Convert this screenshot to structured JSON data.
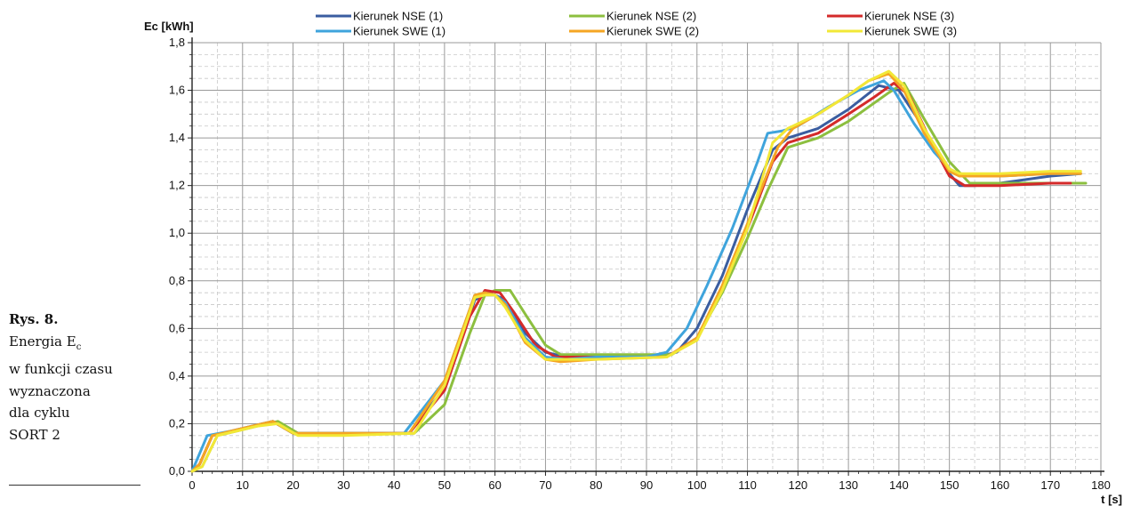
{
  "caption": {
    "figure": "Rys. 8.",
    "line1_prefix": "Energia E",
    "line1_sub": "c",
    "line2": "w funkcji czasu",
    "line3": "wyznaczona",
    "line4": "dla cyklu",
    "line5": "SORT 2"
  },
  "chart_data": {
    "type": "line",
    "xlabel": "t [s]",
    "ylabel": "Ec [kWh]",
    "xlim": [
      0,
      180
    ],
    "ylim": [
      0,
      1.8
    ],
    "xticks": [
      0,
      10,
      20,
      30,
      40,
      50,
      60,
      70,
      80,
      90,
      100,
      110,
      120,
      130,
      140,
      150,
      160,
      170,
      180
    ],
    "yticks": [
      "0,0",
      "0,2",
      "0,4",
      "0,6",
      "0,8",
      "1,0",
      "1,2",
      "1,4",
      "1,6",
      "1,8"
    ],
    "grid": "major solid, minor dashed",
    "legend_position": "top",
    "series": [
      {
        "name": "Kierunek NSE (1)",
        "color": "#3a5da0",
        "x": [
          0,
          1.5,
          4,
          8,
          12,
          16,
          20,
          30,
          43,
          50,
          56,
          58,
          60,
          62,
          66,
          70,
          74,
          80,
          92,
          96,
          100,
          105,
          110,
          115,
          118,
          124,
          130,
          136,
          140,
          145,
          150,
          152,
          155,
          160,
          170,
          176
        ],
        "y": [
          0,
          0.03,
          0.15,
          0.17,
          0.19,
          0.21,
          0.16,
          0.16,
          0.16,
          0.35,
          0.72,
          0.74,
          0.74,
          0.72,
          0.58,
          0.5,
          0.48,
          0.48,
          0.48,
          0.5,
          0.6,
          0.82,
          1.1,
          1.35,
          1.4,
          1.44,
          1.52,
          1.62,
          1.6,
          1.44,
          1.25,
          1.2,
          1.2,
          1.21,
          1.24,
          1.25
        ]
      },
      {
        "name": "Kierunek NSE (2)",
        "color": "#8cbf3f",
        "x": [
          0,
          2,
          5,
          9,
          13,
          17,
          21,
          30,
          44,
          50,
          55,
          58,
          60,
          63,
          66,
          70,
          73,
          80,
          95,
          100,
          105,
          110,
          114,
          118,
          124,
          130,
          138,
          141,
          145,
          150,
          154,
          160,
          170,
          177
        ],
        "y": [
          0,
          0.02,
          0.15,
          0.17,
          0.19,
          0.21,
          0.16,
          0.16,
          0.16,
          0.28,
          0.58,
          0.74,
          0.76,
          0.76,
          0.66,
          0.53,
          0.49,
          0.49,
          0.49,
          0.56,
          0.75,
          0.98,
          1.18,
          1.36,
          1.4,
          1.47,
          1.59,
          1.63,
          1.48,
          1.3,
          1.21,
          1.21,
          1.21,
          1.21
        ]
      },
      {
        "name": "Kierunek NSE (3)",
        "color": "#d42a2a",
        "x": [
          0,
          1.5,
          4,
          8,
          12,
          16,
          20,
          30,
          43,
          50,
          55,
          58,
          61,
          64,
          68,
          72,
          80,
          94,
          100,
          105,
          110,
          115,
          118,
          124,
          130,
          135,
          139,
          142,
          146,
          150,
          153,
          160,
          170,
          174
        ],
        "y": [
          0,
          0.03,
          0.15,
          0.17,
          0.19,
          0.21,
          0.16,
          0.16,
          0.16,
          0.34,
          0.65,
          0.76,
          0.75,
          0.66,
          0.53,
          0.48,
          0.48,
          0.48,
          0.56,
          0.77,
          1.02,
          1.3,
          1.38,
          1.42,
          1.5,
          1.57,
          1.63,
          1.58,
          1.4,
          1.24,
          1.2,
          1.2,
          1.21,
          1.21
        ]
      },
      {
        "name": "Kierunek SWE (1)",
        "color": "#3fa4dc",
        "x": [
          0,
          1,
          3,
          8,
          12,
          16,
          20,
          30,
          42,
          50,
          56,
          58,
          60,
          62,
          66,
          70,
          74,
          80,
          90,
          94,
          98,
          102,
          107,
          112,
          114,
          117,
          120,
          126,
          132,
          137,
          139,
          143,
          147,
          151,
          155,
          160,
          170,
          175
        ],
        "y": [
          0,
          0.05,
          0.15,
          0.17,
          0.19,
          0.21,
          0.16,
          0.16,
          0.16,
          0.38,
          0.74,
          0.75,
          0.74,
          0.71,
          0.56,
          0.48,
          0.47,
          0.48,
          0.48,
          0.5,
          0.6,
          0.78,
          1.02,
          1.3,
          1.42,
          1.43,
          1.45,
          1.53,
          1.6,
          1.64,
          1.6,
          1.46,
          1.34,
          1.25,
          1.24,
          1.24,
          1.25,
          1.25
        ]
      },
      {
        "name": "Kierunek SWE (2)",
        "color": "#f5a623",
        "x": [
          0,
          1.5,
          4,
          8,
          12,
          16,
          20,
          30,
          43,
          50,
          56,
          58,
          60,
          62,
          66,
          70,
          73,
          80,
          94,
          100,
          105,
          110,
          116,
          119,
          124,
          130,
          134,
          138,
          141,
          145,
          150,
          152,
          160,
          170,
          176
        ],
        "y": [
          0,
          0.03,
          0.15,
          0.17,
          0.19,
          0.21,
          0.16,
          0.16,
          0.16,
          0.38,
          0.74,
          0.75,
          0.74,
          0.7,
          0.54,
          0.47,
          0.46,
          0.47,
          0.48,
          0.56,
          0.78,
          1.04,
          1.36,
          1.44,
          1.5,
          1.58,
          1.64,
          1.67,
          1.6,
          1.42,
          1.26,
          1.24,
          1.24,
          1.25,
          1.25
        ]
      },
      {
        "name": "Kierunek SWE (3)",
        "color": "#f2e837",
        "x": [
          0,
          2,
          5,
          9,
          13,
          17,
          21,
          30,
          44,
          50,
          56,
          58,
          60,
          62,
          66,
          70,
          73,
          80,
          94,
          100,
          105,
          110,
          115,
          118,
          124,
          130,
          134,
          138,
          141,
          145,
          150,
          152,
          160,
          170,
          176
        ],
        "y": [
          0,
          0.02,
          0.15,
          0.17,
          0.19,
          0.2,
          0.15,
          0.15,
          0.16,
          0.36,
          0.73,
          0.74,
          0.74,
          0.69,
          0.55,
          0.47,
          0.47,
          0.47,
          0.48,
          0.55,
          0.76,
          1.02,
          1.38,
          1.44,
          1.5,
          1.58,
          1.64,
          1.68,
          1.62,
          1.44,
          1.27,
          1.25,
          1.25,
          1.26,
          1.26
        ]
      }
    ]
  }
}
